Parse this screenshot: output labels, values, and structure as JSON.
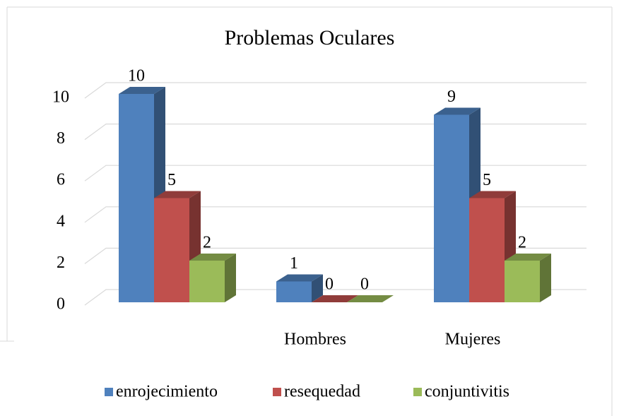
{
  "chart_data": {
    "type": "bar3d",
    "title": "Problemas Oculares",
    "categories": [
      null,
      "Hombres",
      "Mujeres"
    ],
    "series": [
      {
        "name": "enrojecimiento",
        "color": "#4f81bd",
        "values": [
          10,
          1,
          9
        ]
      },
      {
        "name": "resequedad",
        "color": "#c0504d",
        "values": [
          5,
          0,
          5
        ]
      },
      {
        "name": "conjuntivitis",
        "color": "#9bbb59",
        "values": [
          2,
          0,
          2
        ]
      }
    ],
    "ylim": [
      0,
      10
    ],
    "yticks": [
      0,
      2,
      4,
      6,
      8,
      10
    ],
    "grid": true,
    "legend": "bottom"
  }
}
